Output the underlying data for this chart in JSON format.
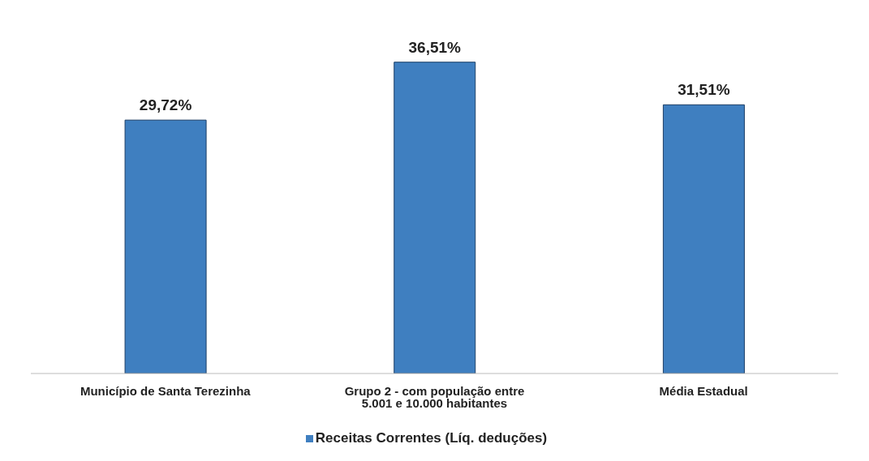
{
  "chart_data": {
    "type": "bar",
    "categories": [
      "Município de Santa Terezinha",
      "Grupo 2 - com população entre 5.001 e 10.000 habitantes",
      "Média Estadual"
    ],
    "series": [
      {
        "name": "Receitas Correntes (Líq. deduções)",
        "color": "#3f7fc0",
        "values": [
          29.72,
          36.51,
          31.51
        ],
        "value_labels": [
          "29,72%",
          "36,51%",
          "31,51%"
        ]
      }
    ],
    "tick_labels": "x",
    "legend": "bottom"
  }
}
